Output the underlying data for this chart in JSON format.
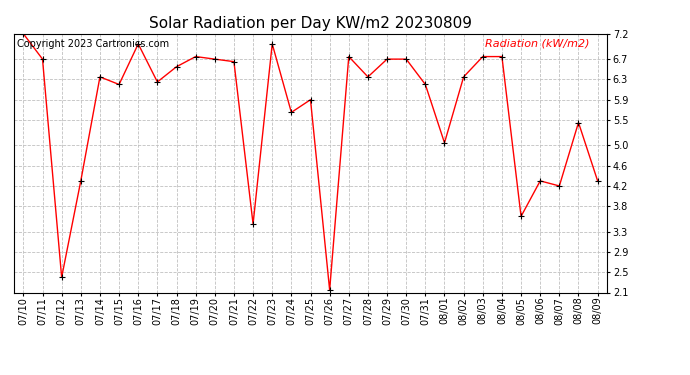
{
  "title": "Solar Radiation per Day KW/m2 20230809",
  "copyright_text": "Copyright 2023 Cartronics.com",
  "legend_label": "Radiation (kW/m2)",
  "dates": [
    "07/10",
    "07/11",
    "07/12",
    "07/13",
    "07/14",
    "07/15",
    "07/16",
    "07/17",
    "07/18",
    "07/19",
    "07/20",
    "07/21",
    "07/22",
    "07/23",
    "07/24",
    "07/25",
    "07/26",
    "07/27",
    "07/28",
    "07/29",
    "07/30",
    "07/31",
    "08/01",
    "08/02",
    "08/03",
    "08/04",
    "08/05",
    "08/06",
    "08/07",
    "08/08",
    "08/09"
  ],
  "values": [
    7.2,
    6.7,
    2.4,
    4.3,
    6.35,
    6.2,
    7.0,
    6.25,
    6.55,
    6.75,
    6.7,
    6.65,
    3.45,
    7.0,
    5.65,
    5.9,
    2.15,
    6.75,
    6.35,
    6.7,
    6.7,
    6.2,
    5.05,
    6.35,
    6.75,
    6.75,
    3.6,
    4.3,
    4.2,
    5.45,
    4.3
  ],
  "line_color": "#ff0000",
  "marker_color": "#000000",
  "background_color": "#ffffff",
  "grid_color": "#c0c0c0",
  "title_color": "#000000",
  "copyright_color": "#000000",
  "legend_color": "#ff0000",
  "ymin": 2.1,
  "ymax": 7.2,
  "yticks": [
    2.1,
    2.5,
    2.9,
    3.3,
    3.8,
    4.2,
    4.6,
    5.0,
    5.5,
    5.9,
    6.3,
    6.7,
    7.2
  ],
  "title_fontsize": 11,
  "axis_fontsize": 7,
  "legend_fontsize": 8,
  "copyright_fontsize": 7
}
